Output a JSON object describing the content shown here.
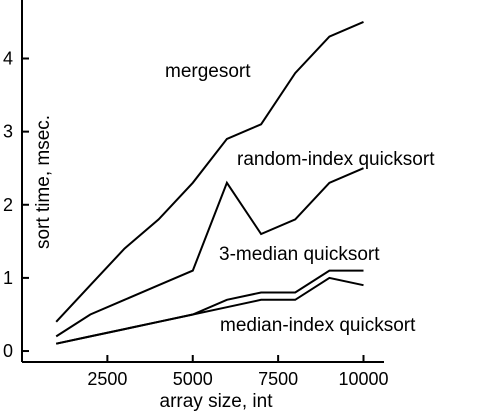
{
  "chart_data": {
    "type": "line",
    "title": "",
    "xlabel": "array size, int",
    "ylabel": "sort time, msec.",
    "xlim": [
      0,
      10600
    ],
    "ylim": [
      -0.15,
      4.8
    ],
    "xticks": [
      2500,
      5000,
      7500,
      10000
    ],
    "yticks": [
      0,
      1,
      2,
      3,
      4
    ],
    "grid": false,
    "series": [
      {
        "name": "mergesort",
        "x": [
          1000,
          2000,
          3000,
          4000,
          5000,
          6000,
          7000,
          8000,
          9000,
          10000
        ],
        "y": [
          0.4,
          0.9,
          1.4,
          1.8,
          2.3,
          2.9,
          3.1,
          3.8,
          4.3,
          4.5
        ]
      },
      {
        "name": "random-index quicksort",
        "x": [
          1000,
          2000,
          3000,
          4000,
          5000,
          6000,
          7000,
          8000,
          9000,
          10000
        ],
        "y": [
          0.2,
          0.5,
          0.7,
          0.9,
          1.1,
          2.3,
          1.6,
          1.8,
          2.3,
          2.5
        ]
      },
      {
        "name": "3-median quicksort",
        "x": [
          1000,
          2000,
          3000,
          4000,
          5000,
          6000,
          7000,
          8000,
          9000,
          10000
        ],
        "y": [
          0.1,
          0.2,
          0.3,
          0.4,
          0.5,
          0.7,
          0.8,
          0.8,
          1.1,
          1.1
        ]
      },
      {
        "name": "median-index quicksort",
        "x": [
          1000,
          2000,
          3000,
          4000,
          5000,
          6000,
          7000,
          8000,
          9000,
          10000
        ],
        "y": [
          0.1,
          0.2,
          0.3,
          0.4,
          0.5,
          0.6,
          0.7,
          0.7,
          1.0,
          0.9
        ]
      }
    ]
  }
}
